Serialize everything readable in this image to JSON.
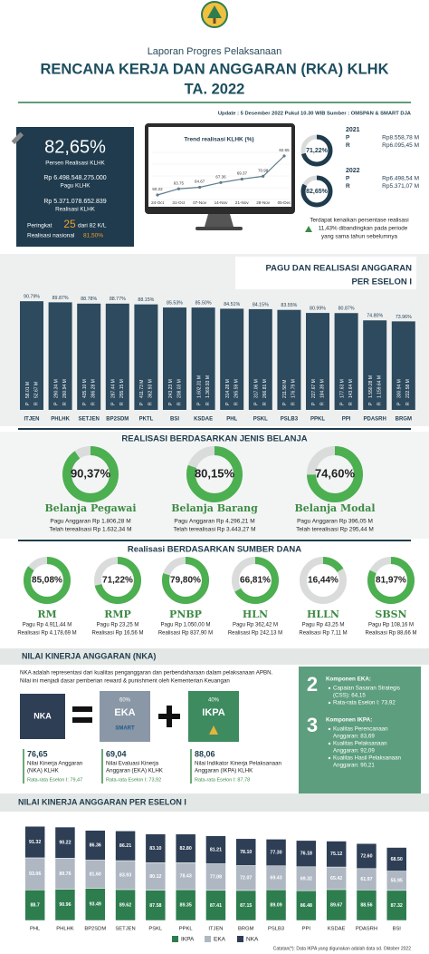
{
  "header": {
    "kicker": "Laporan Progres Pelaksanaan",
    "title": "RENCANA KERJA DAN ANGGARAN (RKA) KLHK",
    "year": "TA. 2022",
    "update": "Update : 5 Desember 2022 Pukul 10.30 WIB Sumber : OMSPAN & SMART DJA"
  },
  "summary": {
    "percent": "82,65%",
    "percent_label": "Persen Realisasi KLHK",
    "pagu": "Rp 6.498.548.275.000",
    "pagu_label": "Pagu KLHK",
    "realisasi": "Rp 5.371.078.652.839",
    "realisasi_label": "Realisasi KLHK",
    "rank_prefix": "Peringkat",
    "rank": "25",
    "rank_suffix": "dari 82 K/L",
    "national_label": "Realisasi nasional",
    "national": "81,50%"
  },
  "trend": {
    "type": "line",
    "title": "Trend realisasi KLHK (%)",
    "x": [
      "24-Oct",
      "31-Oct",
      "07-Nov",
      "14-Nov",
      "21-Nov",
      "28-Nov",
      "05-Dec"
    ],
    "values": [
      60.22,
      63.75,
      64.67,
      67.36,
      69.37,
      70.98,
      82.65
    ],
    "color": "#5d7b8c"
  },
  "comparison": {
    "years": [
      {
        "year": "2021",
        "value": 71.22,
        "label": "71,22%",
        "rows": [
          {
            "key": "P",
            "amount": "Rp8.558,78 M"
          },
          {
            "key": "R",
            "amount": "Rp6.095,45 M"
          }
        ]
      },
      {
        "year": "2022",
        "value": 82.65,
        "label": "82,65%",
        "rows": [
          {
            "key": "P",
            "amount": "Rp6.498,54 M"
          },
          {
            "key": "R",
            "amount": "Rp5.371,07 M"
          }
        ]
      }
    ],
    "note": [
      "Terdapat kenaikan persentase realisasi",
      "11,43% dibandingkan pada periode",
      "yang sama tahun sebelumnya"
    ]
  },
  "eselon": {
    "type": "bar",
    "title": [
      "PAGU DAN REALISASI ANGGARAN",
      "PER ESELON I"
    ],
    "categories": [
      "ITJEN",
      "PHLHK",
      "SETJEN",
      "BP2SDM",
      "PKTL",
      "BSI",
      "KSDAE",
      "PHL",
      "PSKL",
      "PSLB3",
      "PPKL",
      "PPI",
      "PDASRH",
      "BRGM"
    ],
    "values": [
      90.79,
      89.87,
      88.78,
      88.77,
      88.15,
      85.53,
      85.5,
      84.51,
      84.15,
      83.55,
      80.99,
      80.87,
      74.8,
      73.96
    ],
    "value_labels": [
      "90.79%",
      "89.87%",
      "88.78%",
      "88.77%",
      "88.15%",
      "85.53%",
      "85.50%",
      "84.51%",
      "84.15%",
      "83.55%",
      "80.99%",
      "80.87%",
      "74.80%",
      "73.96%"
    ],
    "pagu_key": "P",
    "realisasi_key": "R",
    "pagu": [
      "58.01 M",
      "290.34 M",
      "435.10 M",
      "287.44 M",
      "411.73 M",
      "243.23 M",
      "1.602.31 M",
      "314.28 M",
      "317.06 M",
      "211.58 M",
      "227.67 M",
      "177.63 M",
      "1.550.28 M",
      "300.94 M"
    ],
    "realisasi": [
      "52.67 M",
      "260.94 M",
      "386.28 M",
      "255.15 M",
      "362.93 M",
      "208.03 M",
      "1.369.93 M",
      "265.59 M",
      "266.81 M",
      "176.79 M",
      "184.39 M",
      "143.64 M",
      "1.159.64 M",
      "222.58 M"
    ],
    "color": "#2d4a5e"
  },
  "jenis_belanja": {
    "type": "donut",
    "title": "REALISASI BERDASARKAN JENIS BELANJA",
    "items": [
      {
        "name": "Belanja Pegawai",
        "value": 90.37,
        "label": "90,37%",
        "lines": [
          "Pagu Anggaran Rp 1.806,28 M",
          "Telah terealisasi Rp 1.632,34 M"
        ]
      },
      {
        "name": "Belanja Barang",
        "value": 80.15,
        "label": "80,15%",
        "lines": [
          "Pagu Anggaran Rp 4.296,21 M",
          "Telah terealisasi Rp 3.443,27 M"
        ]
      },
      {
        "name": "Belanja Modal",
        "value": 74.6,
        "label": "74,60%",
        "lines": [
          "Pagu Anggaran Rp 396,05 M",
          "Telah terealisasi Rp 295,44 M"
        ]
      }
    ],
    "color": "#4caf50"
  },
  "sumber_dana": {
    "type": "donut",
    "title": "Realisasi BERDASARKAN SUMBER DANA",
    "items": [
      {
        "name": "RM",
        "value": 85.08,
        "label": "85,08%",
        "lines": [
          "Pagu Rp 4.911,44 M",
          "Realisasi Rp 4.178,69 M"
        ]
      },
      {
        "name": "RMP",
        "value": 71.22,
        "label": "71,22%",
        "lines": [
          "Pagu Rp 23,25 M",
          "Realisasi Rp 16,56 M"
        ]
      },
      {
        "name": "PNBP",
        "value": 79.8,
        "label": "79,80%",
        "lines": [
          "Pagu Rp 1.050,00 M",
          "Realisasi Rp 837,90 M"
        ]
      },
      {
        "name": "HLN",
        "value": 66.81,
        "label": "66,81%",
        "lines": [
          "Pagu Rp 362,42 M",
          "Realisasi Rp 242,13 M"
        ]
      },
      {
        "name": "HLLN",
        "value": 16.44,
        "label": "16,44%",
        "lines": [
          "Pagu Rp 43,25 M",
          "Realisasi Rp 7,11 M"
        ]
      },
      {
        "name": "SBSN",
        "value": 81.97,
        "label": "81,97%",
        "lines": [
          "Pagu Rp 108,16 M",
          "Realisasi Rp 88,66 M"
        ]
      }
    ],
    "color": "#4caf50"
  },
  "nka": {
    "title": "NILAI KINERJA ANGGARAN (NKA)",
    "intro": [
      "NKA adalah representasi dari kualitas penganggaran dan perbendaharaan dalam pelaksanaan APBN.",
      "Nilai ini menjadi dasar pemberian reward & punishment oleh Kementerian Keuangan"
    ],
    "boxes": {
      "nka": "NKA",
      "eka_weight": "60%",
      "eka": "EKA",
      "eka_logo": "SMART",
      "ikpa_weight": "40%",
      "ikpa": "IKPA"
    },
    "scores": [
      {
        "score": "76,65",
        "desc": [
          "Nilai Kinerja Anggaran",
          "(NKA) KLHK"
        ],
        "avg": "Rata-rata Eselon I: 79,47"
      },
      {
        "score": "69,04",
        "desc": [
          "Nilai Evaluasi Kinerja",
          "Anggaran (EKA) KLHK"
        ],
        "avg": "Rata-rata Eselon I: 73,92"
      },
      {
        "score": "88,06",
        "desc": [
          "Nilai Indikator Kinerja Pelaksanaan",
          "Anggaran (IKPA) KLHK"
        ],
        "avg": "Rata-rata Eselon I: 87,78"
      }
    ],
    "components": [
      {
        "number": "2",
        "heading": "Komponen EKA:",
        "bullets": [
          [
            "Capaian Sasaran Strategis",
            "(CSS): 64,15"
          ],
          [
            "Rata-rata Eselon I: 73,92"
          ]
        ]
      },
      {
        "number": "3",
        "heading": "Komponen IKPA:",
        "bullets": [
          [
            "Kualitas Perencanaan",
            "Anggaran: 83,69"
          ],
          [
            "Kualitas Pelaksanaan",
            "Anggaran: 92,09"
          ],
          [
            "Kualitas Hasil Pelaksanaan",
            "Anggaran: 90,21"
          ]
        ]
      }
    ]
  },
  "nka_eselon": {
    "type": "stacked_bar",
    "title": "NILAI KINERJA ANGGARAN PER ESELON I",
    "categories": [
      "PHL",
      "PHLHK",
      "BP2SDM",
      "SETJEN",
      "PSKL",
      "PPKL",
      "ITJEN",
      "BRGM",
      "PSLB3",
      "PPI",
      "KSDAE",
      "PDASRH",
      "BSI"
    ],
    "series": [
      {
        "name": "IKPA",
        "color": "#2e7d4f",
        "values": [
          88.7,
          90.96,
          93.49,
          89.62,
          87.58,
          89.35,
          87.41,
          87.15,
          89.09,
          86.48,
          89.67,
          88.56,
          87.32
        ],
        "value_labels": [
          "88.7",
          "90.96",
          "93.49",
          "89.62",
          "87.58",
          "89.35",
          "87.41",
          "87.15",
          "89.09",
          "86.48",
          "89.67",
          "88.56",
          "87.32"
        ]
      },
      {
        "name": "EKA",
        "color": "#aeb7c2",
        "values": [
          93.06,
          89.76,
          81.6,
          83.93,
          80.12,
          78.43,
          77.08,
          72.07,
          69.43,
          69.32,
          65.42,
          61.97,
          55.95
        ],
        "value_labels": [
          "93.06",
          "89.76",
          "81.60",
          "83.93",
          "80.12",
          "78.43",
          "77.08",
          "72.07",
          "69.43",
          "69.32",
          "65.42",
          "61.97",
          "55.95"
        ]
      },
      {
        "name": "NKA",
        "color": "#2d3e55",
        "values": [
          91.32,
          90.22,
          86.36,
          86.21,
          83.1,
          82.8,
          81.21,
          78.1,
          77.3,
          76.18,
          75.12,
          72.6,
          68.5
        ],
        "value_labels": [
          "91.32",
          "90.22",
          "86.36",
          "86.21",
          "83.10",
          "82.80",
          "81.21",
          "78.10",
          "77.30",
          "76.18",
          "75.12",
          "72.60",
          "68.50"
        ]
      }
    ]
  },
  "footer": "Catatan(*): Data IKPA yang digunakan adalah data sd. Oktober 2022"
}
